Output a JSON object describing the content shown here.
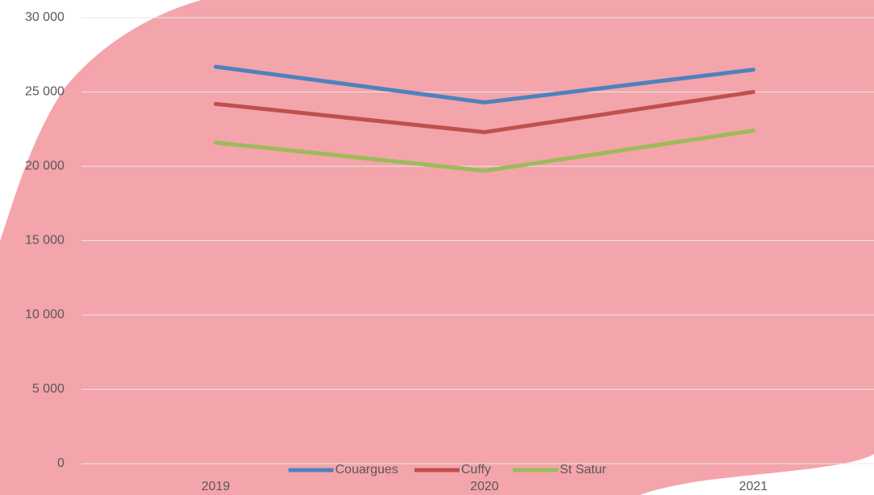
{
  "chart_data": {
    "type": "line",
    "categories": [
      "2019",
      "2020",
      "2021"
    ],
    "series": [
      {
        "name": "Couargues",
        "color": "#4f81bd",
        "values": [
          26700,
          24300,
          26500
        ]
      },
      {
        "name": "Cuffy",
        "color": "#c0504d",
        "values": [
          24200,
          22300,
          25000
        ]
      },
      {
        "name": "St Satur",
        "color": "#9bbb59",
        "values": [
          21600,
          19700,
          22400
        ]
      }
    ],
    "ylim": [
      0,
      30000
    ],
    "yticks": [
      {
        "value": 0,
        "label": "0"
      },
      {
        "value": 5000,
        "label": "5 000"
      },
      {
        "value": 10000,
        "label": "10 000"
      },
      {
        "value": 15000,
        "label": "15 000"
      },
      {
        "value": 20000,
        "label": "20 000"
      },
      {
        "value": 25000,
        "label": "25 000"
      },
      {
        "value": 30000,
        "label": "30 000"
      }
    ],
    "grid": true,
    "legend": "bottom"
  }
}
